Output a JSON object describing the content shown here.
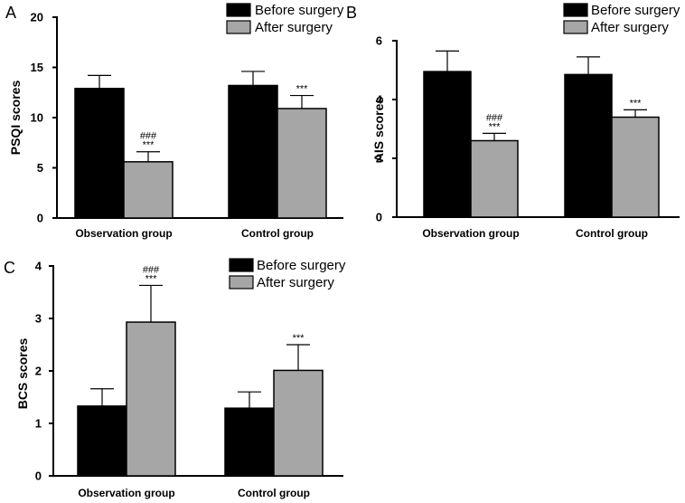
{
  "colors": {
    "before": "#000000",
    "after": "#a6a6a6"
  },
  "chart_data": [
    {
      "panel": "A",
      "type": "bar",
      "ylabel": "PSQI scores",
      "ylim": [
        0,
        20
      ],
      "yticks": [
        0,
        5,
        10,
        15,
        20
      ],
      "categories": [
        "Observation group",
        "Control group"
      ],
      "series": [
        {
          "name": "Before surgery",
          "values": [
            12.9,
            13.2
          ],
          "errors": [
            1.3,
            1.4
          ],
          "annotations": [
            "",
            ""
          ]
        },
        {
          "name": "After surgery",
          "values": [
            5.6,
            10.9
          ],
          "errors": [
            1.0,
            1.3
          ],
          "annotations": [
            "###\n***",
            "***"
          ]
        }
      ],
      "legend": [
        "Before surgery",
        "After surgery"
      ]
    },
    {
      "panel": "B",
      "type": "bar",
      "ylabel": "AIS scores",
      "ylim": [
        0,
        6
      ],
      "yticks": [
        0,
        2,
        4,
        6
      ],
      "categories": [
        "Observation group",
        "Control group"
      ],
      "series": [
        {
          "name": "Before surgery",
          "values": [
            4.95,
            4.85
          ],
          "errors": [
            0.7,
            0.6
          ],
          "annotations": [
            "",
            ""
          ]
        },
        {
          "name": "After surgery",
          "values": [
            2.6,
            3.4
          ],
          "errors": [
            0.25,
            0.25
          ],
          "annotations": [
            "###\n***",
            "***"
          ]
        }
      ],
      "legend": [
        "Before surgery",
        "After surgery"
      ]
    },
    {
      "panel": "C",
      "type": "bar",
      "ylabel": "BCS scores",
      "ylim": [
        0,
        4
      ],
      "yticks": [
        0,
        1,
        2,
        3,
        4
      ],
      "categories": [
        "Observation group",
        "Control group"
      ],
      "series": [
        {
          "name": "Before surgery",
          "values": [
            1.33,
            1.29
          ],
          "errors": [
            0.33,
            0.31
          ],
          "annotations": [
            "",
            ""
          ]
        },
        {
          "name": "After surgery",
          "values": [
            2.93,
            2.01
          ],
          "errors": [
            0.7,
            0.49
          ],
          "annotations": [
            "###\n***",
            "***"
          ]
        }
      ],
      "legend": [
        "Before surgery",
        "After surgery"
      ]
    }
  ]
}
